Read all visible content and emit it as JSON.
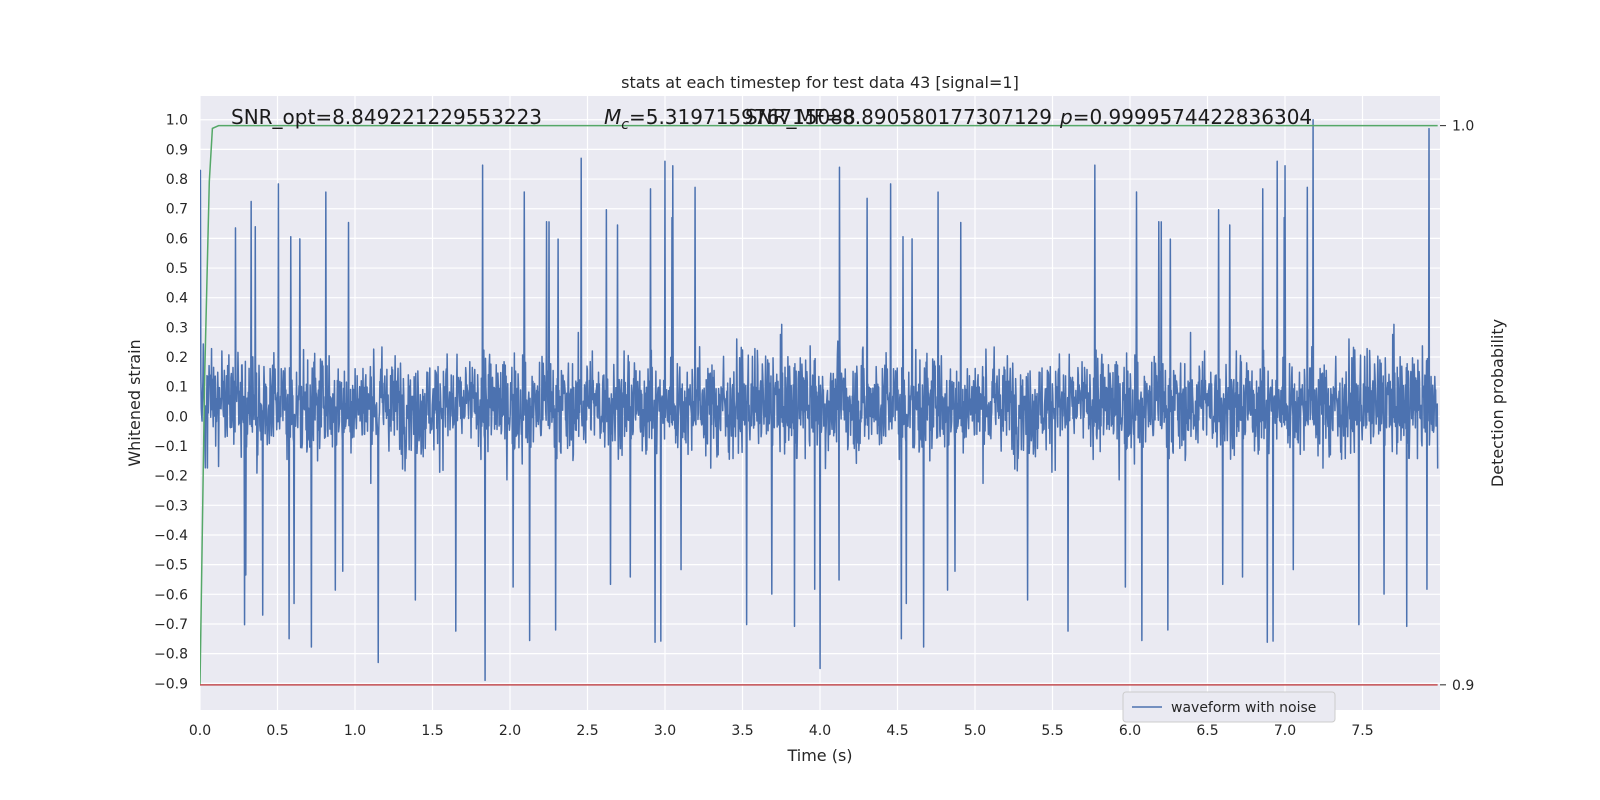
{
  "chart_data": {
    "type": "line",
    "title": "stats at each timestep for test data 43 [signal=1]",
    "xlabel": "Time (s)",
    "ylabel": "Whitened strain",
    "y2label": "Detection probability",
    "xlim": [
      0.0,
      8.0
    ],
    "ylim": [
      -0.99,
      1.08
    ],
    "y2lim": [
      0.8955,
      1.0053
    ],
    "x_ticks": [
      0.0,
      0.5,
      1.0,
      1.5,
      2.0,
      2.5,
      3.0,
      3.5,
      4.0,
      4.5,
      5.0,
      5.5,
      6.0,
      6.5,
      7.0,
      7.5
    ],
    "y_ticks": [
      -0.9,
      -0.8,
      -0.7,
      -0.6,
      -0.5,
      -0.4,
      -0.3,
      -0.2,
      -0.1,
      0.0,
      0.1,
      0.2,
      0.3,
      0.4,
      0.5,
      0.6,
      0.7,
      0.8,
      0.9,
      1.0
    ],
    "y2_ticks": [
      0.9,
      1.0
    ],
    "x_tick_labels": [
      "0.0",
      "0.5",
      "1.0",
      "1.5",
      "2.0",
      "2.5",
      "3.0",
      "3.5",
      "4.0",
      "4.5",
      "5.0",
      "5.5",
      "6.0",
      "6.5",
      "7.0",
      "7.5"
    ],
    "y_tick_labels": [
      "−0.9",
      "−0.8",
      "−0.7",
      "−0.6",
      "−0.5",
      "−0.4",
      "−0.3",
      "−0.2",
      "−0.1",
      "0.0",
      "0.1",
      "0.2",
      "0.3",
      "0.4",
      "0.5",
      "0.6",
      "0.7",
      "0.8",
      "0.9",
      "1.0"
    ],
    "y2_tick_labels": [
      "0.9",
      "1.0"
    ],
    "grid": true,
    "legend": "bottom-right",
    "series": [
      {
        "name": "waveform with noise",
        "color": "#4c72b0",
        "x_start": 0.0,
        "x_end": 8.0,
        "amplitude_typical": [
          -0.45,
          0.6
        ],
        "peaks": [
          {
            "x": 2.46,
            "y": 0.87
          },
          {
            "x": 7.18,
            "y": 1.0
          },
          {
            "x": 7.93,
            "y": 0.97
          },
          {
            "x": 1.84,
            "y": -0.89
          },
          {
            "x": 4.0,
            "y": -0.85
          },
          {
            "x": 1.15,
            "y": -0.83
          }
        ]
      },
      {
        "axis": "secondary",
        "color": "#55a868",
        "x": [
          0.0,
          0.03,
          0.06,
          0.08,
          0.12,
          0.2,
          8.0
        ],
        "y": [
          0.9,
          0.955,
          0.99,
          0.9995,
          1.0,
          1.0,
          1.0
        ]
      },
      {
        "axis": "secondary",
        "color": "#c44e52",
        "x": [
          0.0,
          8.0
        ],
        "y": [
          0.9,
          0.9
        ]
      }
    ],
    "annotations": [
      {
        "text": "SNR_opt=8.849221229553223",
        "x": 0.2,
        "y": 1.0
      },
      {
        "text": "Mc=5.319715976715088",
        "math_symbol": "M",
        "math_sub": "c",
        "value_text": "=5.319715976715088",
        "x": 2.6,
        "y": 1.0
      },
      {
        "text": "SNR_MF=8.890580177307129",
        "x": 3.5,
        "y": 1.0
      },
      {
        "text": "p=0.9999574422836304",
        "value_text": "=0.9999574422836304",
        "x": 5.55,
        "y": 1.0
      }
    ]
  }
}
